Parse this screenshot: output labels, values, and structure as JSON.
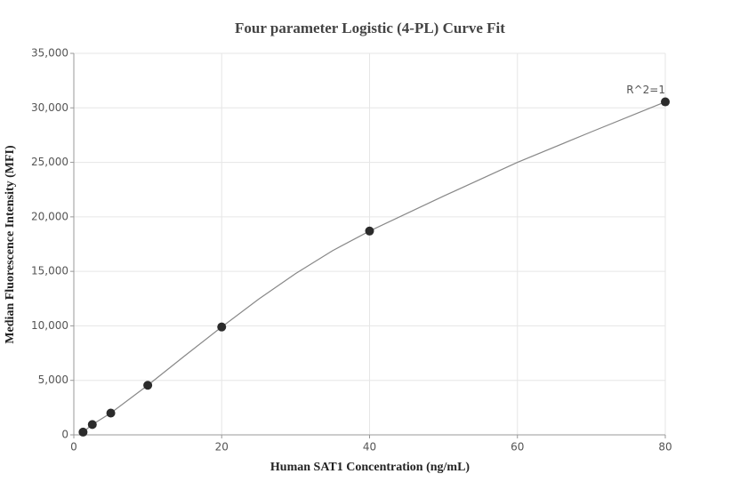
{
  "chart_data": {
    "type": "scatter",
    "title": "Four parameter Logistic (4-PL) Curve Fit",
    "x_label": "Human SAT1 Concentration (ng/mL)",
    "y_label": "Median Fluorescence Intensity (MFI)",
    "x": [
      1.25,
      2.5,
      5,
      10,
      20,
      40,
      80
    ],
    "values": [
      250,
      950,
      2000,
      4550,
      9900,
      18700,
      30550
    ],
    "color": "#2b2b2b",
    "fit": {
      "color": "#888888",
      "x": [
        1.25,
        2.5,
        5,
        10,
        15,
        20,
        25,
        30,
        35,
        40,
        50,
        60,
        70,
        80
      ],
      "values": [
        250,
        950,
        2000,
        4550,
        7250,
        9900,
        12450,
        14800,
        16900,
        18700,
        21900,
        25000,
        27800,
        30550
      ]
    },
    "annotation": "R^2=1",
    "xlim": [
      0,
      80
    ],
    "xticks": [
      0,
      20,
      40,
      60,
      80
    ],
    "ylim": [
      0,
      35000
    ],
    "yticks": [
      0,
      {
        "value": 5000,
        "label": "5,000"
      },
      {
        "value": 10000,
        "label": "10,000"
      },
      {
        "value": 15000,
        "label": "15,000"
      },
      {
        "value": 20000,
        "label": "20,000"
      },
      {
        "value": 25000,
        "label": "25,000"
      },
      {
        "value": 30000,
        "label": "30,000"
      },
      {
        "value": 35000,
        "label": "35,000"
      }
    ],
    "grid": true
  }
}
